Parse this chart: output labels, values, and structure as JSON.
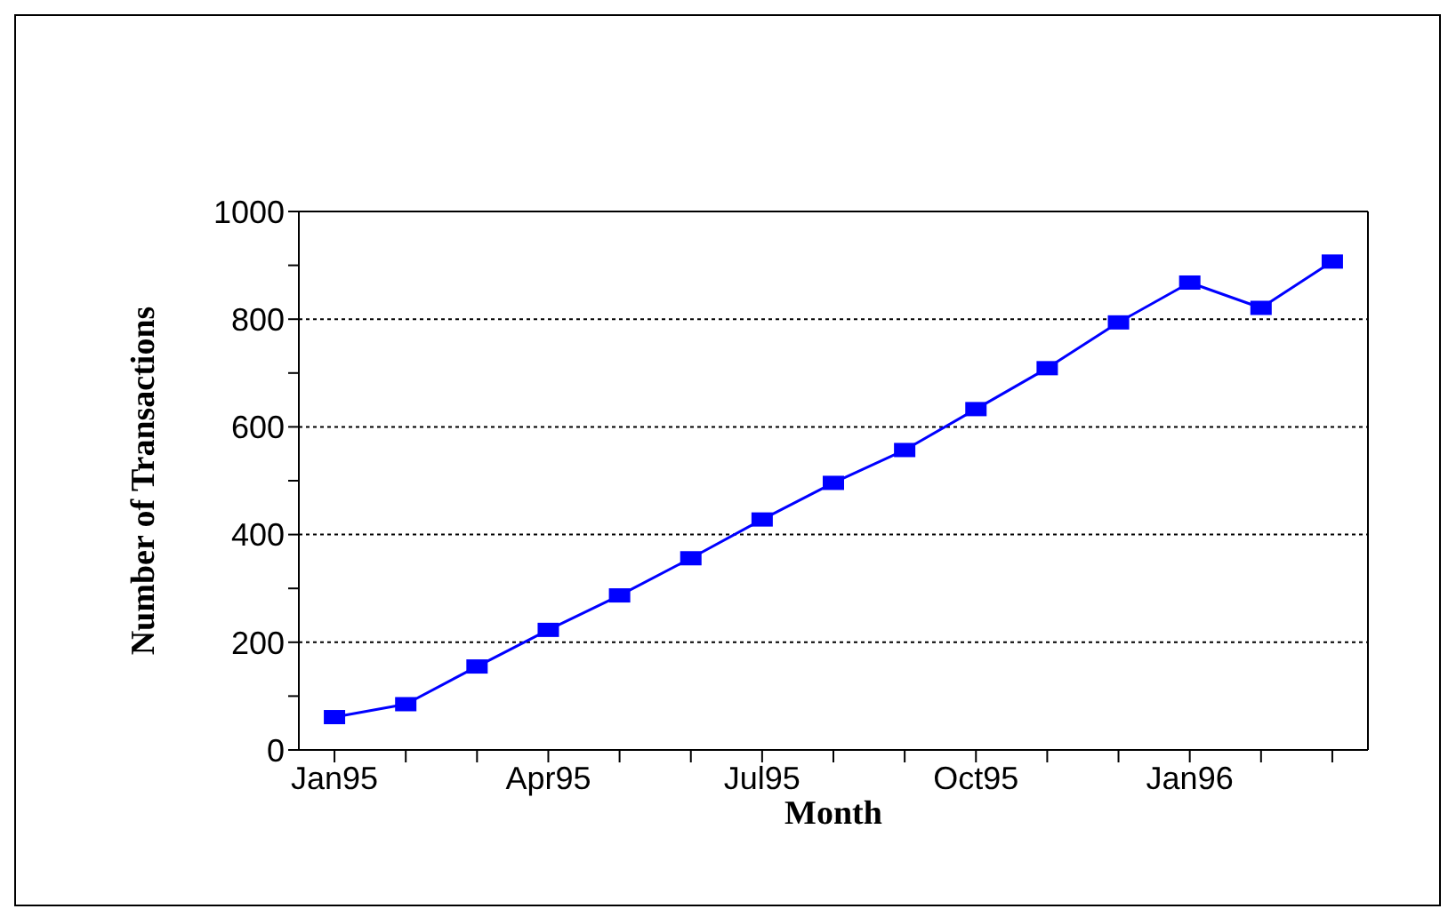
{
  "chart_data": {
    "type": "line",
    "xlabel": "Month",
    "ylabel": "Number of Transactions",
    "categories": [
      "Jan95",
      null,
      null,
      "Apr95",
      null,
      null,
      "Jul95",
      null,
      null,
      "Oct95",
      null,
      null,
      "Jan96",
      null,
      null
    ],
    "series": [
      {
        "color": "#0000ff",
        "values": [
          61,
          85,
          155,
          223,
          287,
          356,
          428,
          496,
          557,
          633,
          709,
          794,
          868,
          821,
          907
        ]
      }
    ],
    "ylim": [
      0,
      1000
    ],
    "yticks": [
      0,
      {
        "value": 100,
        "label": null
      },
      200,
      {
        "value": 300,
        "label": null
      },
      400,
      {
        "value": 500,
        "label": null
      },
      600,
      {
        "value": 700,
        "label": null
      },
      800,
      {
        "value": 900,
        "label": null
      },
      1000
    ],
    "grid": "y",
    "marker": "square",
    "line_style": "solid",
    "legend": false
  }
}
